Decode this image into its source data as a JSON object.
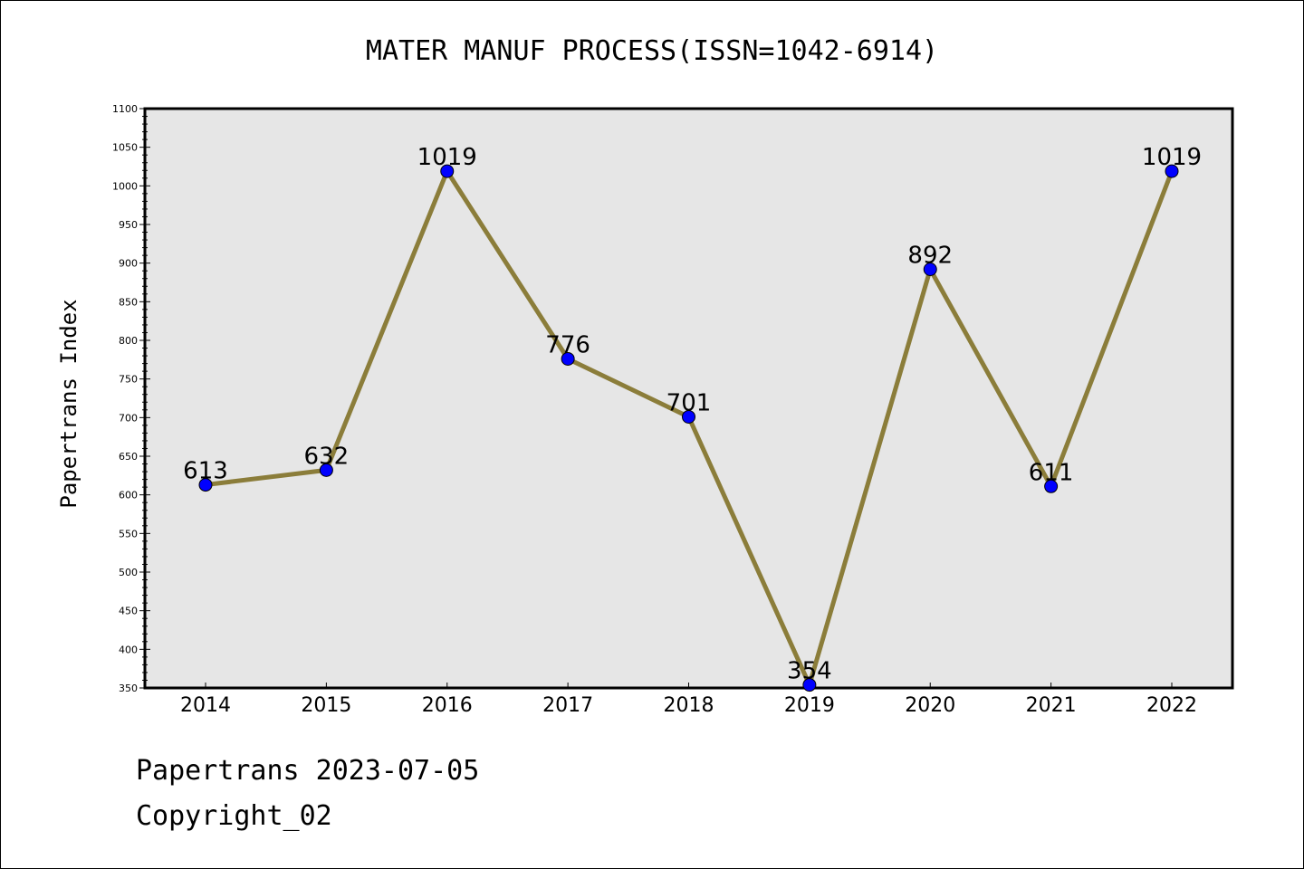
{
  "chart_data": {
    "type": "line",
    "title": "MATER MANUF PROCESS(ISSN=1042-6914)",
    "xlabel": "",
    "ylabel": "Papertrans Index",
    "categories": [
      "2014",
      "2015",
      "2016",
      "2017",
      "2018",
      "2019",
      "2020",
      "2021",
      "2022"
    ],
    "series": [
      {
        "values": [
          613,
          632,
          1019,
          776,
          701,
          354,
          892,
          611,
          1019
        ]
      }
    ],
    "data_labels": [
      "613",
      "632",
      "1019",
      "776",
      "701",
      "354",
      "892",
      "611",
      "1019"
    ],
    "ylim": [
      350,
      1100
    ],
    "yticks": [
      350,
      400,
      450,
      500,
      550,
      600,
      650,
      700,
      750,
      800,
      850,
      900,
      950,
      1000,
      1050,
      1100
    ],
    "grid": false,
    "legend": "none",
    "colors": {
      "line": "#8b7d3a",
      "marker": "#0000ff",
      "plot_bg": "#e6e6e6"
    }
  },
  "footer": {
    "date_text": "Papertrans 2023-07-05",
    "copyright_text": "Copyright_02"
  }
}
